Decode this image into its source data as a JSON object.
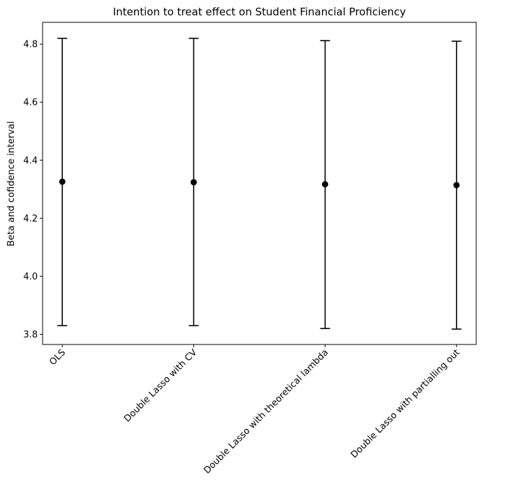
{
  "chart_data": {
    "type": "errorbar",
    "title": "Intention to treat effect on Student Financial Proficiency",
    "ylabel": "Beta and cofidence interval",
    "xlabel": "",
    "categories": [
      "OLS",
      "Double Lasso with CV",
      "Double Lasso with theoretical lambda",
      "Double Lasso with partialling out"
    ],
    "values": [
      4.326,
      4.324,
      4.317,
      4.314
    ],
    "lower": [
      3.83,
      3.83,
      3.82,
      3.818
    ],
    "upper": [
      4.82,
      4.82,
      4.812,
      4.81
    ],
    "ylim": [
      3.765,
      4.875
    ],
    "yticks": [
      "3.8",
      "4.0",
      "4.2",
      "4.4",
      "4.6",
      "4.8"
    ],
    "grid": false,
    "color": "#000000"
  }
}
